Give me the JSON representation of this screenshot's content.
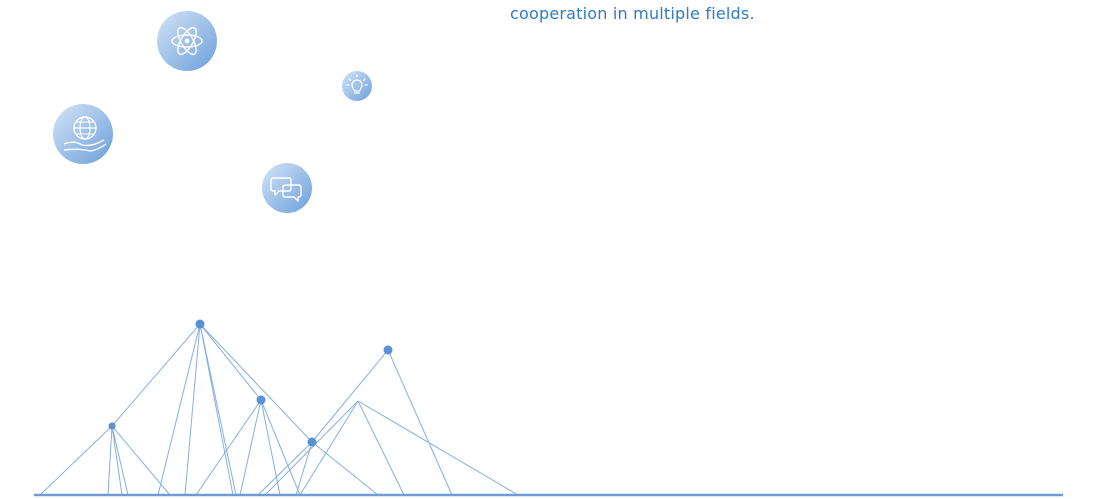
{
  "caption": "cooperation in multiple fields.",
  "colors": {
    "accent": "#2f7bc2",
    "line": "#7aa6d8",
    "node": "#5b8fd6",
    "circle_light": "#c9dcf2",
    "circle_dark": "#76a7dd",
    "baseline": "#6f9cd6"
  },
  "icons": [
    "globe-hand-icon",
    "atom-icon",
    "chat-bubbles-icon",
    "lightbulb-icon"
  ]
}
